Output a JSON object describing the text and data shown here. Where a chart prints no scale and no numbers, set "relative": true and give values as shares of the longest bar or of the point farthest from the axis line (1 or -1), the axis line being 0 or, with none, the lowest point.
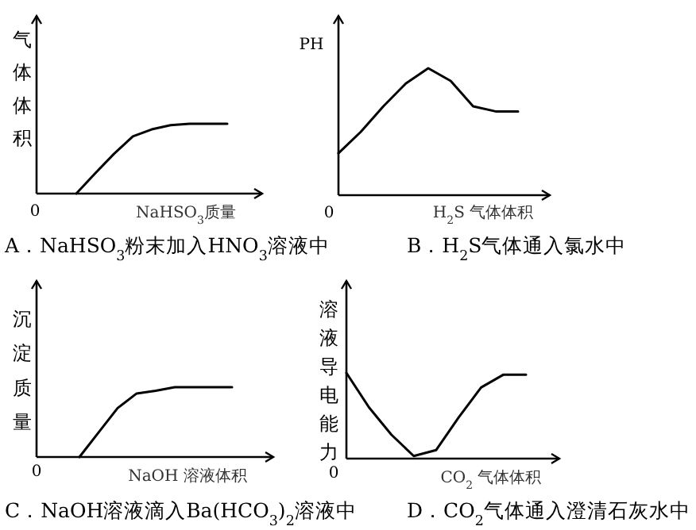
{
  "chart_data": [
    {
      "type": "line",
      "relative": true,
      "title": "A．NaHSO$_{3}$粉末加入HNO$_{3}$溶液中",
      "xlabel": "NaHSO$_{3}$质量",
      "ylabel": "气体体积",
      "annotations": [
        "0"
      ],
      "marker": "none",
      "line_style": "solid",
      "categories": [
        null,
        null,
        null,
        null,
        null,
        null,
        null,
        null,
        null
      ],
      "series": [
        {
          "color": "#000000",
          "values": [
            0,
            0.29,
            0.57,
            0.82,
            0.92,
            0.98,
            1,
            1,
            1
          ]
        }
      ]
    },
    {
      "type": "line",
      "relative": true,
      "title": "B．H$_{2}$S气体通入氯水中",
      "xlabel": "H$_{2}$S 气体体积",
      "ylabel": "PH",
      "annotations": [
        "0"
      ],
      "marker": "none",
      "line_style": "solid",
      "categories": [
        null,
        null,
        null,
        null,
        null,
        null,
        null,
        null,
        null
      ],
      "series": [
        {
          "color": "#000000",
          "values": [
            0.33,
            0.5,
            0.7,
            0.88,
            1,
            0.9,
            0.7,
            0.66,
            0.66
          ]
        }
      ]
    },
    {
      "type": "line",
      "relative": true,
      "title": "C．NaOH溶液滴入Ba(HCO$_{3}$)$_{2}$溶液中",
      "xlabel": "NaOH 溶液体积",
      "ylabel": "沉淀质量",
      "annotations": [
        "0"
      ],
      "marker": "none",
      "line_style": "solid",
      "categories": [
        null,
        null,
        null,
        null,
        null,
        null,
        null,
        null,
        null
      ],
      "series": [
        {
          "color": "#000000",
          "values": [
            0,
            0.35,
            0.7,
            0.91,
            0.95,
            1,
            1,
            1,
            1
          ]
        }
      ]
    },
    {
      "type": "line",
      "relative": true,
      "title": "D．CO$_{2}$气体通入澄清石灰水中",
      "xlabel": "CO$_{2}$ 气体体积",
      "ylabel": "溶液导电能力",
      "annotations": [
        "0"
      ],
      "marker": "none",
      "line_style": "solid",
      "categories": [
        null,
        null,
        null,
        null,
        null,
        null,
        null,
        null,
        null
      ],
      "series": [
        {
          "color": "#000000",
          "values": [
            1,
            0.6,
            0.28,
            0.03,
            0.1,
            0.48,
            0.83,
            0.98,
            0.98
          ]
        }
      ]
    }
  ]
}
